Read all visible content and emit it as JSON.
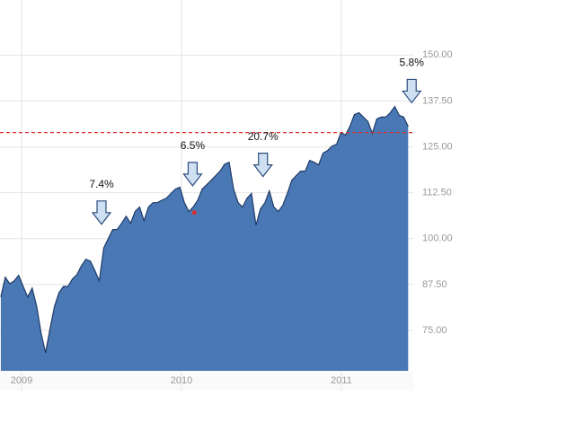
{
  "chart_data": {
    "type": "area",
    "x": [
      2008.87,
      2008.898,
      2008.926,
      2008.954,
      2008.982,
      2009.01,
      2009.038,
      2009.066,
      2009.094,
      2009.122,
      2009.15,
      2009.178,
      2009.206,
      2009.234,
      2009.262,
      2009.29,
      2009.318,
      2009.346,
      2009.374,
      2009.402,
      2009.43,
      2009.458,
      2009.486,
      2009.514,
      2009.542,
      2009.57,
      2009.598,
      2009.626,
      2009.654,
      2009.682,
      2009.71,
      2009.738,
      2009.766,
      2009.794,
      2009.822,
      2009.85,
      2009.878,
      2009.906,
      2009.934,
      2009.962,
      2009.99,
      2010.018,
      2010.046,
      2010.074,
      2010.102,
      2010.13,
      2010.158,
      2010.186,
      2010.214,
      2010.242,
      2010.27,
      2010.298,
      2010.326,
      2010.354,
      2010.382,
      2010.41,
      2010.438,
      2010.466,
      2010.494,
      2010.522,
      2010.55,
      2010.578,
      2010.606,
      2010.634,
      2010.662,
      2010.69,
      2010.718,
      2010.746,
      2010.774,
      2010.802,
      2010.83,
      2010.858,
      2010.886,
      2010.914,
      2010.942,
      2010.97,
      2010.998,
      2011.026,
      2011.054,
      2011.082,
      2011.11,
      2011.138,
      2011.166,
      2011.194,
      2011.222,
      2011.25,
      2011.278,
      2011.306,
      2011.334,
      2011.362,
      2011.39,
      2011.418
    ],
    "values": [
      84.1,
      89.5,
      87.7,
      88.5,
      90.0,
      87.0,
      84.1,
      86.5,
      81.6,
      74.3,
      68.9,
      75.5,
      81.6,
      85.3,
      87.0,
      87.0,
      89.0,
      90.2,
      92.6,
      94.4,
      93.9,
      91.4,
      88.5,
      97.5,
      100.0,
      102.5,
      102.5,
      104.2,
      106.1,
      104.2,
      107.4,
      108.6,
      104.9,
      108.6,
      109.8,
      109.8,
      110.5,
      111.0,
      112.3,
      113.5,
      114.0,
      109.8,
      107.4,
      108.6,
      110.5,
      113.5,
      114.7,
      115.9,
      117.2,
      118.4,
      120.3,
      120.8,
      113.5,
      109.8,
      108.6,
      111.0,
      112.3,
      103.7,
      108.1,
      109.8,
      113.0,
      108.6,
      107.4,
      109.1,
      112.3,
      115.9,
      117.2,
      118.4,
      118.4,
      121.3,
      120.8,
      120.1,
      123.3,
      124.0,
      125.2,
      125.7,
      128.9,
      128.2,
      130.6,
      133.8,
      134.3,
      133.1,
      131.9,
      128.7,
      132.6,
      133.1,
      133.1,
      134.3,
      136.0,
      133.6,
      133.1,
      130.6
    ],
    "color": "#4a78b5",
    "line_color": "#1e3a66",
    "xlim": [
      2008.865,
      2011.45
    ],
    "xticks": [
      2009,
      2010,
      2011
    ],
    "ylim": [
      64,
      165
    ],
    "yticks": [
      {
        "value": 75,
        "label": "75.00"
      },
      {
        "value": 87.5,
        "label": "87.50"
      },
      {
        "value": 100,
        "label": "100.00"
      },
      {
        "value": 112.5,
        "label": "112.50"
      },
      {
        "value": 125,
        "label": "125.00"
      },
      {
        "value": 137.5,
        "label": "137.50"
      },
      {
        "value": 150,
        "label": "150.00"
      }
    ],
    "grid": true,
    "reference_line": {
      "value": 128.9,
      "color": "#d9302a"
    },
    "highlight_point": {
      "x": 2010.08,
      "y": 107.1,
      "color": "#d9302a"
    },
    "annotations": [
      {
        "text": "7.4%",
        "x": 2009.5
      },
      {
        "text": "6.5%",
        "x": 2010.07
      },
      {
        "text": "20.7%",
        "x": 2010.51
      },
      {
        "text": "5.8%",
        "x": 2011.44
      }
    ]
  }
}
